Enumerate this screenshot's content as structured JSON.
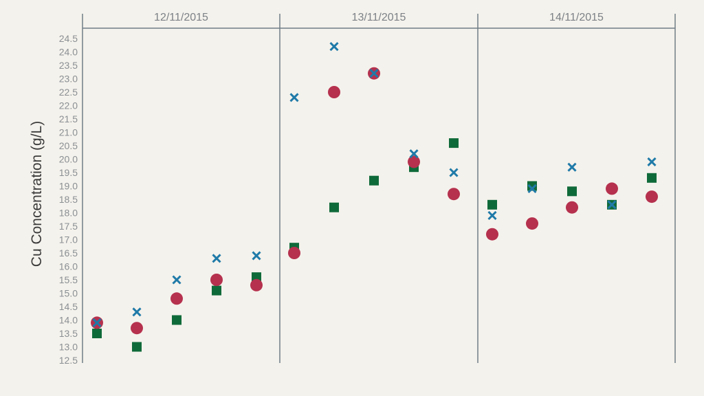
{
  "chart_data": {
    "type": "scatter",
    "title": "",
    "ylabel": "Cu Concentration (g/L)",
    "xlabel": "",
    "ylim": [
      12.5,
      24.5
    ],
    "ytick_step": 0.5,
    "grid": false,
    "legend": "none",
    "groups": [
      "12/11/2015",
      "13/11/2015",
      "14/11/2015"
    ],
    "points_per_group": 5,
    "series": [
      {
        "marker": "cross",
        "color": "#1f7aa8",
        "values": [
          13.9,
          14.3,
          15.5,
          16.3,
          16.4,
          22.3,
          24.2,
          23.2,
          20.2,
          19.5,
          17.9,
          18.9,
          19.7,
          18.3,
          19.9
        ]
      },
      {
        "marker": "circle",
        "color": "#b5314e",
        "values": [
          13.9,
          13.7,
          14.8,
          15.5,
          15.3,
          16.5,
          22.5,
          23.2,
          19.9,
          18.7,
          17.2,
          17.6,
          18.2,
          18.9,
          18.6
        ]
      },
      {
        "marker": "square",
        "color": "#0f6a3a",
        "values": [
          13.5,
          13.0,
          14.0,
          15.1,
          15.6,
          16.7,
          18.2,
          19.2,
          19.7,
          20.6,
          18.3,
          19.0,
          18.8,
          18.3,
          19.3
        ]
      }
    ]
  }
}
